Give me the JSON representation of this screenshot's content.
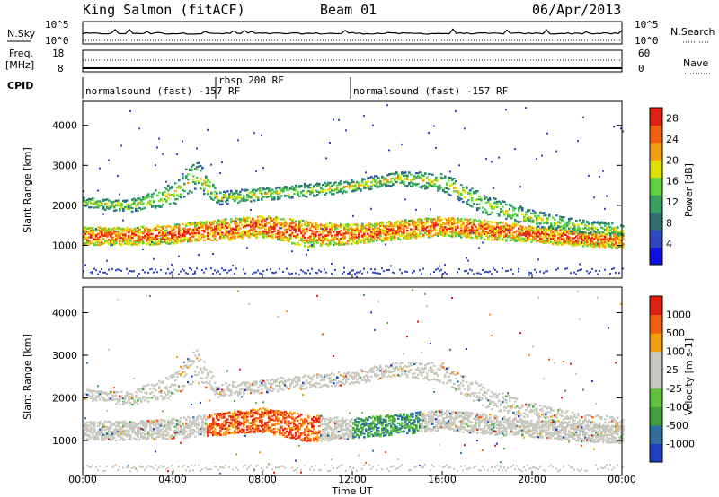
{
  "header": {
    "title": "King Salmon (fitACF)",
    "beam": "Beam 01",
    "date": "06/Apr/2013"
  },
  "strips": {
    "nsky": {
      "label": "N.Sky",
      "top": "10^5",
      "bottom": "10^0"
    },
    "nsearch": {
      "label": "N.Search",
      "top": "10^5",
      "bottom": "10^0"
    },
    "freq": {
      "label_line1": "Freq.",
      "label_line2": "[MHz]",
      "top": "18",
      "bottom": "8"
    },
    "nave": {
      "label": "Nave",
      "top": "60",
      "bottom": "0"
    },
    "cpid": {
      "label": "CPID",
      "segments": [
        {
          "text": "normalsound (fast) -157 RF",
          "start_h": 0.0,
          "end_h": 6.0
        },
        {
          "text": "rbsp 200 RF",
          "start_h": 6.0,
          "end_h": 12.0
        },
        {
          "text": "normalsound (fast) -157 RF",
          "start_h": 12.0,
          "end_h": 24.0
        }
      ]
    }
  },
  "chart_data": [
    {
      "type": "heatmap",
      "panel": "power",
      "ylabel": "Slant Range [km]",
      "xlabel": "",
      "x_ticks": [
        "00:00",
        "04:00",
        "08:00",
        "12:00",
        "16:00",
        "20:00",
        "00:00"
      ],
      "xlim_hours": [
        0,
        24
      ],
      "y_ticks": [
        1000,
        2000,
        3000,
        4000
      ],
      "ylim": [
        180,
        4600
      ],
      "colorbar": {
        "label": "Power [dB]",
        "ticks": [
          4,
          8,
          12,
          16,
          20,
          24,
          28
        ],
        "range": [
          0,
          30
        ],
        "colors": [
          "#1010e0",
          "#3048c0",
          "#307070",
          "#38a060",
          "#60d040",
          "#e0e000",
          "#f0a010",
          "#f06010",
          "#e02010"
        ]
      },
      "bands": [
        {
          "name": "main",
          "points": [
            [
              0,
              1250,
              280
            ],
            [
              2,
              1250,
              280
            ],
            [
              4,
              1300,
              300
            ],
            [
              6,
              1400,
              320
            ],
            [
              8,
              1500,
              350
            ],
            [
              10,
              1300,
              400
            ],
            [
              12,
              1300,
              300
            ],
            [
              14,
              1400,
              300
            ],
            [
              16,
              1500,
              300
            ],
            [
              18,
              1400,
              300
            ],
            [
              20,
              1300,
              250
            ],
            [
              22,
              1200,
              250
            ],
            [
              24,
              1150,
              250
            ]
          ],
          "level": 0.55
        },
        {
          "name": "upper",
          "points": [
            [
              0,
              2100,
              150
            ],
            [
              2,
              2000,
              200
            ],
            [
              4,
              2300,
              350
            ],
            [
              5,
              2800,
              500
            ],
            [
              6,
              2200,
              200
            ],
            [
              12,
              2500,
              200
            ],
            [
              14,
              2700,
              200
            ],
            [
              16,
              2600,
              300
            ],
            [
              18,
              2000,
              300
            ],
            [
              20,
              1700,
              250
            ],
            [
              22,
              1500,
              200
            ],
            [
              24,
              1400,
              200
            ]
          ],
          "level": 0.2
        }
      ]
    },
    {
      "type": "heatmap",
      "panel": "velocity",
      "ylabel": "Slant Range [km]",
      "xlabel": "Time UT",
      "x_ticks": [
        "00:00",
        "04:00",
        "08:00",
        "12:00",
        "16:00",
        "20:00",
        "00:00"
      ],
      "xlim_hours": [
        0,
        24
      ],
      "y_ticks": [
        1000,
        2000,
        3000,
        4000
      ],
      "ylim": [
        180,
        4600
      ],
      "colorbar": {
        "label": "Velocity [m s-1]",
        "ticks": [
          "1000",
          "500",
          "100",
          "25",
          "-25",
          "-100",
          "-500",
          "-1000"
        ],
        "colors": [
          "#2040c0",
          "#3070a0",
          "#40a040",
          "#60c040",
          "#c8c8c0",
          "#c8c8c0",
          "#f0a010",
          "#f06010",
          "#e02010"
        ]
      }
    }
  ]
}
